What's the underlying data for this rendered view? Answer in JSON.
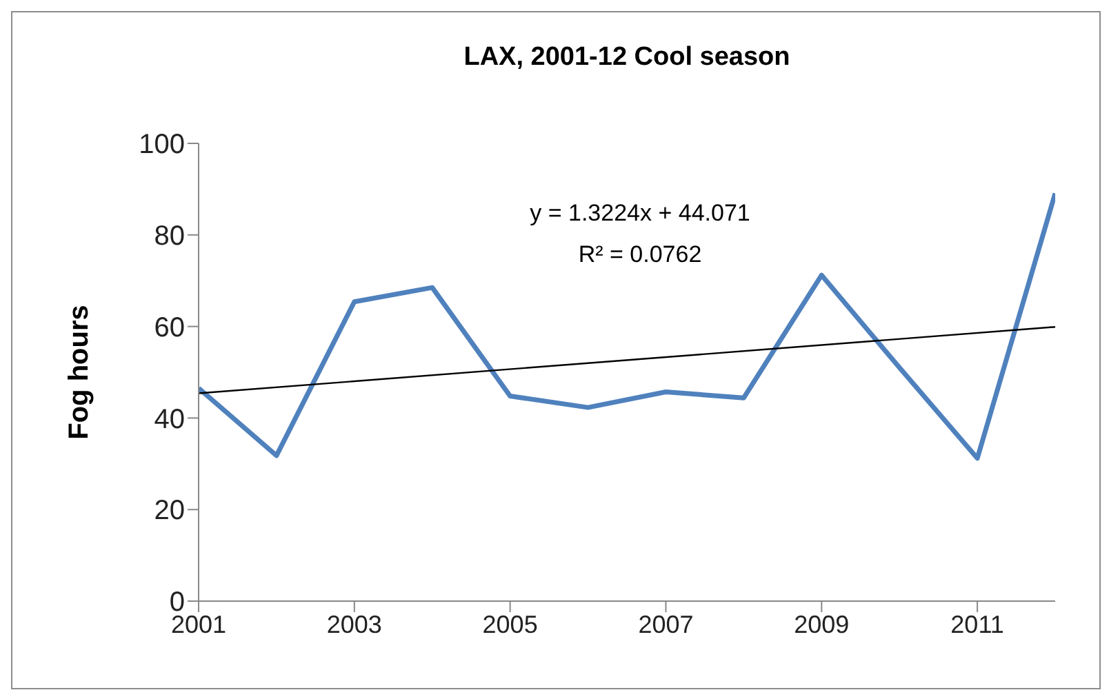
{
  "chart_data": {
    "type": "line",
    "title": "LAX, 2001-12 Cool season",
    "ylabel": "Fog hours",
    "annotations": [
      "y = 1.3224x + 44.071",
      "R² = 0.0762"
    ],
    "x": [
      2001,
      2002,
      2003,
      2004,
      2005,
      2006,
      2007,
      2008,
      2009,
      2010,
      2011,
      2012
    ],
    "series": [
      {
        "color": "#4f81bd",
        "values": [
          46.5,
          31.8,
          65.4,
          68.5,
          44.8,
          42.3,
          45.7,
          44.4,
          71.2,
          51,
          31.2,
          89.1
        ]
      },
      {
        "type": "line",
        "color": "#000000",
        "x": [
          2001,
          2012
        ],
        "values": [
          45.4,
          59.9
        ]
      }
    ],
    "xlim": [
      2001,
      2012
    ],
    "xticks": [
      2001,
      2003,
      2005,
      2007,
      2009,
      2011
    ],
    "ylim": [
      0,
      100
    ],
    "yticks": [
      0,
      20,
      40,
      60,
      80,
      100
    ],
    "marker": "none"
  }
}
